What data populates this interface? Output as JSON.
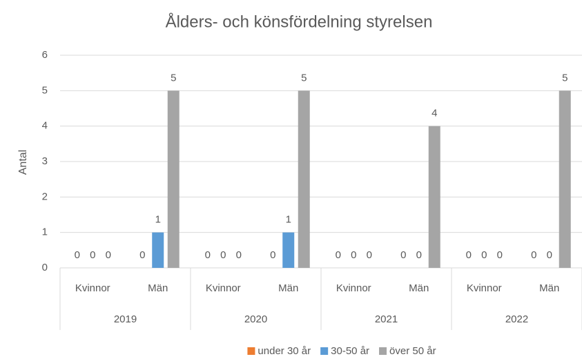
{
  "chart_data": {
    "type": "bar",
    "title": "Ålders- och könsfördelning styrelsen",
    "ylabel": "Antal",
    "groups": [
      "2019",
      "2020",
      "2021",
      "2022"
    ],
    "categories": [
      "Kvinnor",
      "Män",
      "Kvinnor",
      "Män",
      "Kvinnor",
      "Män",
      "Kvinnor",
      "Män"
    ],
    "series": [
      {
        "name": "under 30 år",
        "color": "#ed7d31",
        "values": [
          0,
          0,
          0,
          0,
          0,
          0,
          0,
          0
        ]
      },
      {
        "name": "30-50 år",
        "color": "#5b9bd5",
        "values": [
          0,
          1,
          0,
          1,
          0,
          0,
          0,
          0
        ]
      },
      {
        "name": "över 50 år",
        "color": "#a5a5a5",
        "values": [
          0,
          5,
          0,
          5,
          0,
          4,
          0,
          5
        ]
      }
    ],
    "ylim": [
      0,
      6
    ],
    "yticks": [
      0,
      1,
      2,
      3,
      4,
      5,
      6
    ],
    "grid": true,
    "legend": "bottom"
  }
}
